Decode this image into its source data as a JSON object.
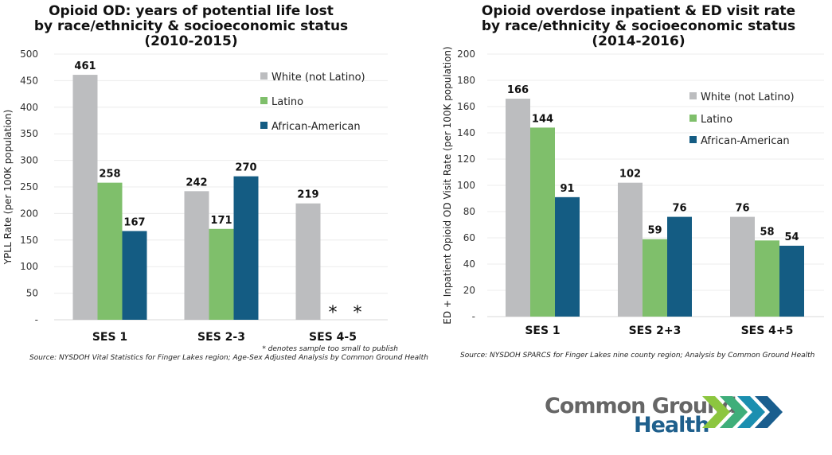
{
  "colors": {
    "White (not Latino)": "#bcbdbf",
    "Latino": "#7fbf6b",
    "African-American": "#145c83"
  },
  "chart_data": [
    {
      "type": "bar",
      "title": [
        "Opioid OD: years of potential life lost",
        "by race/ethnicity & socioeconomic status",
        "(2010-2015)"
      ],
      "ylabel": "YPLL Rate (per 100K population)",
      "xlabel": "",
      "ylim": [
        0,
        500
      ],
      "yticks": [
        500,
        450,
        400,
        350,
        300,
        250,
        200,
        150,
        100,
        50,
        0
      ],
      "ytick_labels": [
        "500",
        "450",
        "400",
        "350",
        "300",
        "250",
        "200",
        "150",
        "100",
        "50",
        "-"
      ],
      "grid": true,
      "legend_position": "top-right",
      "categories": [
        "SES 1",
        "SES 2-3",
        "SES 4-5"
      ],
      "series": [
        {
          "name": "White (not Latino)",
          "values": [
            461,
            242,
            219
          ]
        },
        {
          "name": "Latino",
          "values": [
            258,
            171,
            null
          ]
        },
        {
          "name": "African-American",
          "values": [
            167,
            270,
            null
          ]
        }
      ],
      "suppressed_marker": "*",
      "footnote": "* denotes sample too small to publish",
      "source": "Source: NYSDOH Vital Statistics for Finger Lakes region; Age-Sex Adjusted Analysis by Common Ground Health"
    },
    {
      "type": "bar",
      "title": [
        "Opioid overdose inpatient & ED visit rate",
        "by race/ethnicity & socioeconomic status",
        "(2014-2016)"
      ],
      "ylabel": "ED + Inpatient Opioid OD Visit Rate (per 100K population)",
      "xlabel": "",
      "ylim": [
        0,
        200
      ],
      "yticks": [
        200,
        180,
        160,
        140,
        120,
        100,
        80,
        60,
        40,
        20,
        0
      ],
      "ytick_labels": [
        "200",
        "180",
        "160",
        "140",
        "120",
        "100",
        "80",
        "60",
        "40",
        "20",
        "-"
      ],
      "grid": true,
      "legend_position": "top-right",
      "categories": [
        "SES 1",
        "SES 2+3",
        "SES 4+5"
      ],
      "series": [
        {
          "name": "White (not Latino)",
          "values": [
            166,
            102,
            76
          ]
        },
        {
          "name": "Latino",
          "values": [
            144,
            59,
            58
          ]
        },
        {
          "name": "African-American",
          "values": [
            91,
            76,
            54
          ]
        }
      ],
      "source": "Source: NYSDOH SPARCS for Finger Lakes nine county region; Analysis by Common Ground Health"
    }
  ],
  "logo": {
    "line1": "Common Ground",
    "line2": "Health"
  }
}
